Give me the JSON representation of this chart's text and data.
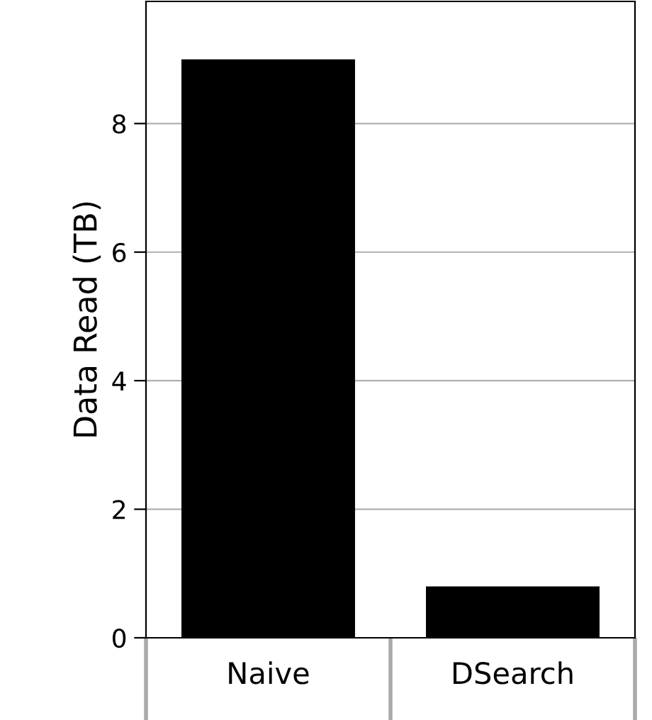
{
  "chart_data": {
    "type": "bar",
    "ylabel": "Data Read (TB)",
    "categories": [
      "Naive",
      "DSearch"
    ],
    "values": [
      9.0,
      0.8
    ],
    "color": "#000000",
    "ylim": [
      0,
      9.9
    ],
    "yticks": [
      0,
      2,
      4,
      6,
      8
    ],
    "grid": "y"
  }
}
